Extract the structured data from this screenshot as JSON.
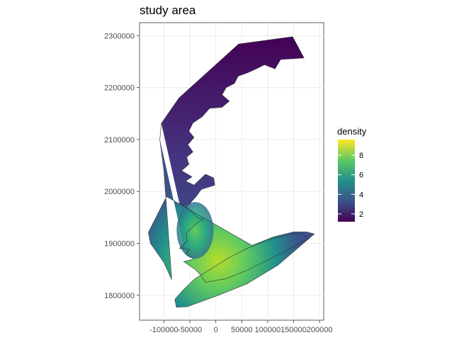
{
  "chart_data": {
    "type": "heatmap",
    "title": "study area",
    "xlabel": "",
    "ylabel": "",
    "x_ticks": [
      -100000,
      -50000,
      0,
      50000,
      100000,
      150000,
      200000
    ],
    "x_tick_labels": [
      "-100000",
      "-50000",
      "0",
      "50000",
      "100000",
      "150000",
      "200000"
    ],
    "y_ticks": [
      1800000,
      1900000,
      2000000,
      2100000,
      2200000,
      2300000
    ],
    "y_tick_labels": [
      "1800000",
      "1900000",
      "2000000",
      "2100000",
      "2200000",
      "2300000"
    ],
    "xlim": [
      -147000,
      208000
    ],
    "ylim": [
      1752000,
      2325000
    ],
    "grid": true,
    "legend": {
      "title": "density",
      "position": "right",
      "breaks": [
        2,
        4,
        6,
        8
      ],
      "labels": [
        "2",
        "4",
        "6",
        "8"
      ],
      "range": [
        1.2,
        9.6
      ],
      "colors": [
        "#440154",
        "#3b528b",
        "#21908c",
        "#5ec962",
        "#fde725"
      ]
    },
    "region_outline": [
      [
        -105000,
        2131000
      ],
      [
        -71000,
        2180000
      ],
      [
        44000,
        2284000
      ],
      [
        148000,
        2298000
      ],
      [
        170000,
        2257000
      ],
      [
        125000,
        2254000
      ],
      [
        114000,
        2236000
      ],
      [
        94000,
        2244000
      ],
      [
        78000,
        2236000
      ],
      [
        60000,
        2228000
      ],
      [
        43000,
        2222000
      ],
      [
        36000,
        2208000
      ],
      [
        20000,
        2200000
      ],
      [
        12000,
        2186000
      ],
      [
        26000,
        2174000
      ],
      [
        12000,
        2162000
      ],
      [
        -12000,
        2160000
      ],
      [
        -26000,
        2144000
      ],
      [
        -44000,
        2132000
      ],
      [
        -52000,
        2116000
      ],
      [
        -42000,
        2104000
      ],
      [
        -54000,
        2090000
      ],
      [
        -44000,
        2076000
      ],
      [
        -56000,
        2066000
      ],
      [
        -52000,
        2052000
      ],
      [
        -66000,
        2040000
      ],
      [
        -46000,
        2028000
      ],
      [
        -58000,
        2020000
      ],
      [
        -42000,
        2012000
      ],
      [
        -20000,
        2033000
      ],
      [
        -4000,
        2026000
      ],
      [
        -2000,
        2012000
      ],
      [
        -28000,
        2004000
      ],
      [
        -38000,
        1990000
      ],
      [
        -56000,
        1970000
      ],
      [
        -36000,
        1950000
      ],
      [
        -24000,
        1947000
      ],
      [
        -38000,
        1938000
      ],
      [
        -57000,
        1920000
      ],
      [
        -55000,
        1905000
      ],
      [
        -70000,
        1890000
      ],
      [
        -50000,
        1888000
      ],
      [
        -58000,
        1880000
      ],
      [
        -42000,
        1870000
      ],
      [
        -62000,
        1865000
      ],
      [
        -40000,
        1850000
      ],
      [
        -30000,
        1840000
      ],
      [
        -20000,
        1825000
      ],
      [
        20000,
        1832000
      ],
      [
        60000,
        1848000
      ],
      [
        100000,
        1868000
      ],
      [
        140000,
        1888000
      ],
      [
        178000,
        1910000
      ],
      [
        167000,
        1918000
      ],
      [
        145000,
        1918000
      ],
      [
        100000,
        1906000
      ],
      [
        60000,
        1890000
      ],
      [
        25000,
        1872000
      ],
      [
        -10000,
        1850000
      ],
      [
        -40000,
        1832000
      ],
      [
        -63000,
        1810000
      ],
      [
        -79000,
        1792000
      ],
      [
        -76000,
        1777000
      ],
      [
        -55000,
        1778000
      ],
      [
        5000,
        1800000
      ],
      [
        60000,
        1822000
      ],
      [
        120000,
        1858000
      ],
      [
        190000,
        1918000
      ],
      [
        175000,
        1922000
      ],
      [
        150000,
        1922000
      ],
      [
        110000,
        1912000
      ],
      [
        70000,
        1896000
      ],
      [
        -95000,
        1990000
      ],
      [
        -130000,
        1921000
      ],
      [
        -126000,
        1900000
      ],
      [
        -100000,
        1863000
      ],
      [
        -85000,
        1830000
      ],
      [
        -100000,
        2040000
      ],
      [
        -108000,
        2100000
      ]
    ]
  }
}
